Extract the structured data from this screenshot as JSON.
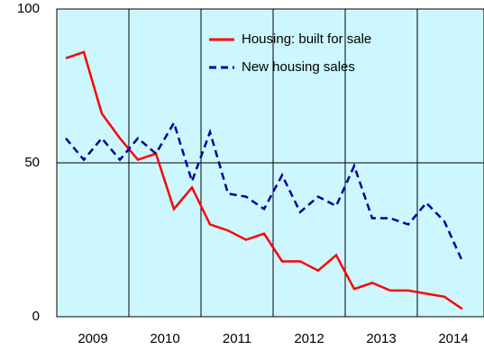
{
  "chart_data": {
    "type": "line",
    "x": [
      2009.125,
      2009.375,
      2009.625,
      2009.875,
      2010.125,
      2010.375,
      2010.625,
      2010.875,
      2011.125,
      2011.375,
      2011.625,
      2011.875,
      2012.125,
      2012.375,
      2012.625,
      2012.875,
      2013.125,
      2013.375,
      2013.625,
      2013.875,
      2014.125,
      2014.375,
      2014.625
    ],
    "series": [
      {
        "name": "Housing: built for sale",
        "color": "#ff0000",
        "dash": false,
        "values": [
          84,
          86,
          66,
          58,
          51,
          53,
          35,
          42,
          30,
          28,
          25,
          27,
          18,
          18,
          15,
          20,
          9,
          11,
          8.5,
          8.5,
          7.5,
          6.5,
          2.5
        ]
      },
      {
        "name": "New housing sales",
        "color": "#0000a0",
        "dash": true,
        "values": [
          58,
          51,
          58,
          51,
          58,
          53,
          63,
          44,
          60,
          40,
          39,
          35,
          46,
          34,
          39,
          36,
          49,
          32,
          32,
          30,
          37,
          31,
          18
        ]
      }
    ],
    "xlim": [
      2009,
      2015
    ],
    "xticks": [
      {
        "value": 2009.5,
        "label": "2009"
      },
      {
        "value": 2010.5,
        "label": "2010"
      },
      {
        "value": 2011.5,
        "label": "2011"
      },
      {
        "value": 2012.5,
        "label": "2012"
      },
      {
        "value": 2013.5,
        "label": "2013"
      },
      {
        "value": 2014.5,
        "label": "2014"
      }
    ],
    "xgrid": [
      2010,
      2011,
      2012,
      2013,
      2014
    ],
    "ylim": [
      0,
      100
    ],
    "yticks": [
      0,
      50,
      100
    ],
    "grid": true,
    "legend": "top-right",
    "background": "#ccf7ff"
  }
}
